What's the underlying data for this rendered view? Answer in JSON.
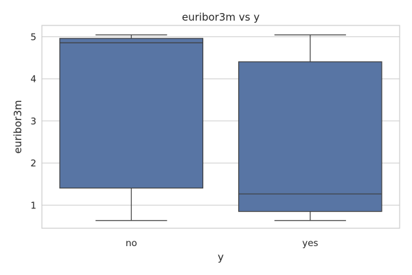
{
  "chart_data": {
    "type": "box",
    "title": "euribor3m vs y",
    "xlabel": "y",
    "ylabel": "euribor3m",
    "categories": [
      "no",
      "yes"
    ],
    "ylim": [
      0.45,
      5.27
    ],
    "yticks": [
      1,
      2,
      3,
      4,
      5
    ],
    "ytick_labels": [
      "1",
      "2",
      "3",
      "4",
      "5"
    ],
    "grid": true,
    "box_color": "#5875a4",
    "line_color": "#3d3d3d",
    "boxes": [
      {
        "category": "no",
        "whisker_low": 0.634,
        "q1": 1.405,
        "median": 4.857,
        "q3": 4.962,
        "whisker_high": 5.045
      },
      {
        "category": "yes",
        "whisker_low": 0.634,
        "q1": 0.849,
        "median": 1.266,
        "q3": 4.406,
        "whisker_high": 5.045
      }
    ]
  }
}
